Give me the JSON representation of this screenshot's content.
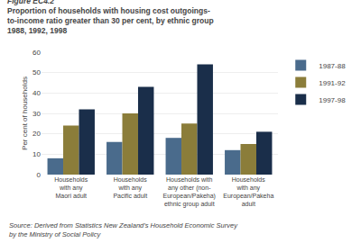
{
  "chart_data": {
    "type": "bar",
    "title": "Proportion of households with housing cost outgoings-\nto-income ratio greater than 30 per cent, by ethnic group\n1988, 1992, 1998",
    "annotations": [
      "Figure EC4.2",
      "Source: Derived from Statistics New Zealand’s Household Economic Survey\nby the Ministry of Social Policy"
    ],
    "categories": [
      "Households\nwith any\nMaori adult",
      "Households\nwith any\nPacific adult",
      "Households with\nany other (non-\nEuropean/Pakeha)\nethnic group adult",
      "Households\nwith any\nEuropean/Pakeha\nadult"
    ],
    "series": [
      {
        "name": "1987-88",
        "values": [
          8,
          16,
          18,
          12
        ],
        "color": "#4a6b8c"
      },
      {
        "name": "1991-92",
        "values": [
          24,
          30,
          25,
          15
        ],
        "color": "#8b7d3a"
      },
      {
        "name": "1997-98",
        "values": [
          32,
          43,
          54,
          21
        ],
        "color": "#1a2e4a"
      }
    ],
    "ylabel": "Per cent of households",
    "ylim": [
      0,
      60
    ],
    "yticks": [
      0,
      10,
      20,
      30,
      40,
      50,
      60
    ],
    "grid": true,
    "legend": "right"
  }
}
